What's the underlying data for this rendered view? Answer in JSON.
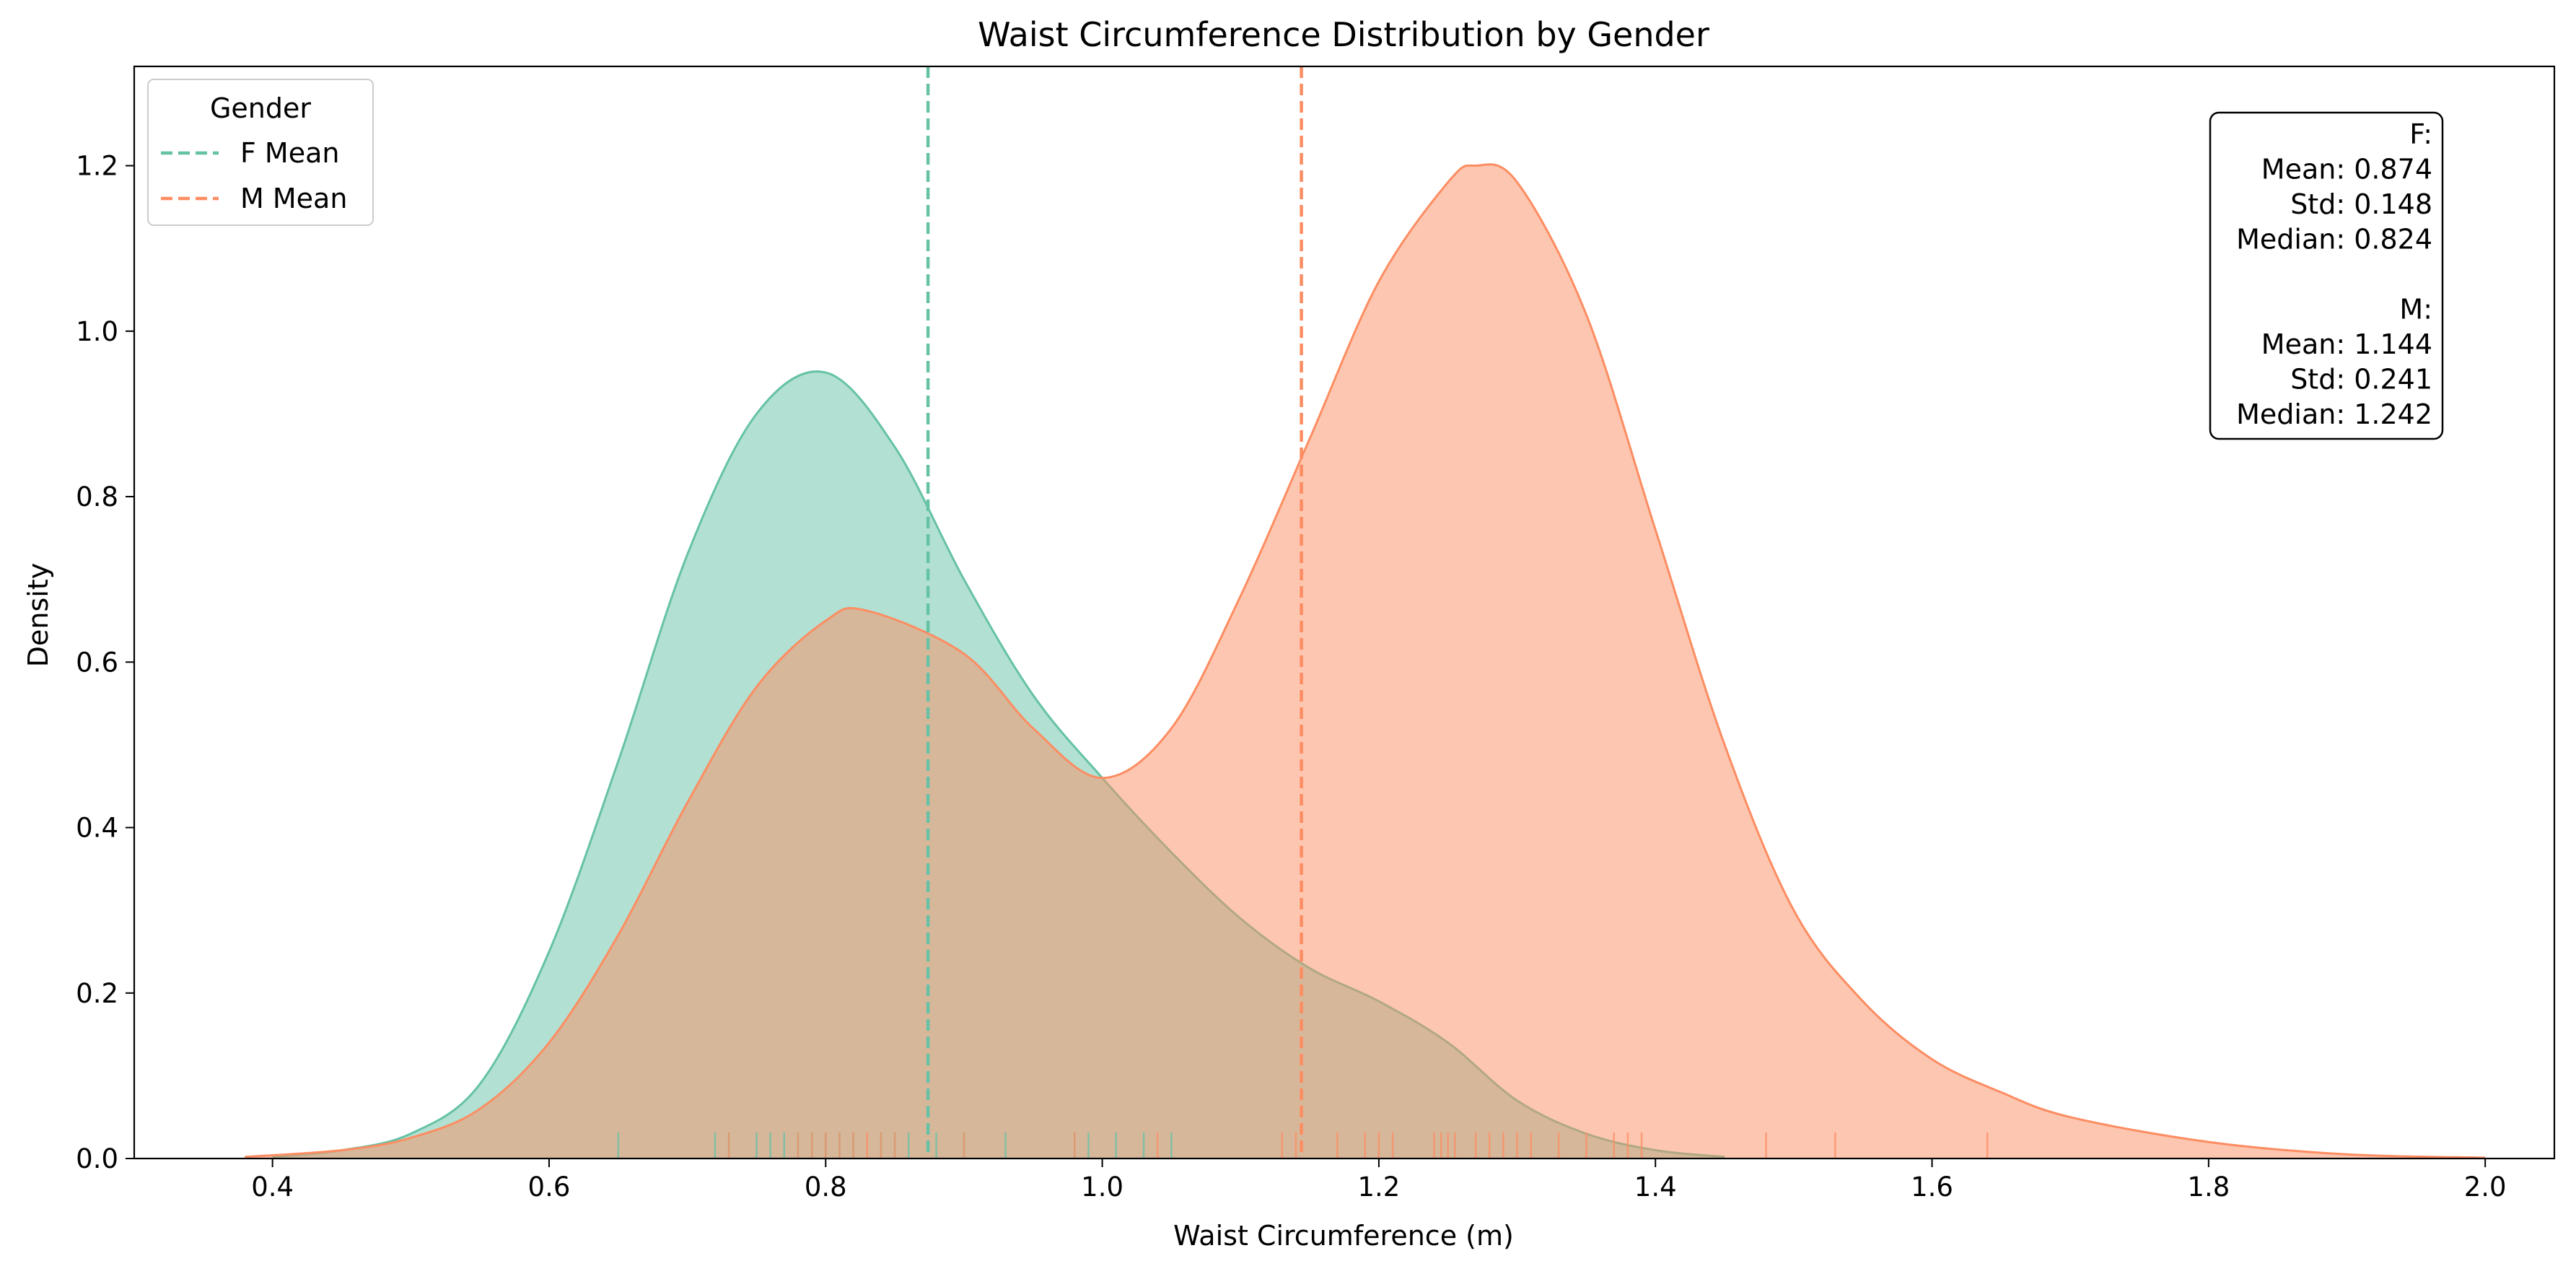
{
  "chart_data": {
    "type": "area",
    "title": "Waist Circumference Distribution by Gender",
    "xlabel": "Waist Circumference (m)",
    "ylabel": "Density",
    "xlim": [
      0.3,
      2.05
    ],
    "ylim": [
      0,
      1.32
    ],
    "xticks": [
      "0.4",
      "0.6",
      "0.8",
      "1.0",
      "1.2",
      "1.4",
      "1.6",
      "1.8",
      "2.0"
    ],
    "yticks": [
      "0.0",
      "0.2",
      "0.4",
      "0.6",
      "0.8",
      "1.0",
      "1.2"
    ],
    "grid": false,
    "legend": {
      "title": "Gender",
      "placement": "top-left",
      "entries": [
        "F Mean",
        "M Mean"
      ]
    },
    "colors": {
      "F": "#66c2a5",
      "M": "#fc8d62"
    },
    "series": [
      {
        "name": "F",
        "x": [
          0.4,
          0.45,
          0.5,
          0.55,
          0.6,
          0.65,
          0.7,
          0.75,
          0.8,
          0.85,
          0.9,
          0.95,
          1.0,
          1.05,
          1.1,
          1.15,
          1.2,
          1.25,
          1.3,
          1.35,
          1.4,
          1.45
        ],
        "y": [
          0.002,
          0.01,
          0.03,
          0.09,
          0.25,
          0.48,
          0.73,
          0.9,
          0.95,
          0.86,
          0.7,
          0.56,
          0.46,
          0.37,
          0.29,
          0.23,
          0.19,
          0.14,
          0.07,
          0.03,
          0.01,
          0.002
        ],
        "mean_line": 0.874
      },
      {
        "name": "M",
        "x": [
          0.38,
          0.45,
          0.5,
          0.55,
          0.6,
          0.65,
          0.7,
          0.75,
          0.8,
          0.83,
          0.9,
          0.95,
          1.0,
          1.05,
          1.1,
          1.15,
          1.2,
          1.25,
          1.27,
          1.3,
          1.35,
          1.4,
          1.45,
          1.5,
          1.55,
          1.6,
          1.65,
          1.7,
          1.8,
          1.9,
          2.0
        ],
        "y": [
          0.002,
          0.01,
          0.025,
          0.06,
          0.14,
          0.27,
          0.43,
          0.57,
          0.65,
          0.662,
          0.61,
          0.52,
          0.46,
          0.52,
          0.68,
          0.87,
          1.06,
          1.18,
          1.2,
          1.18,
          1.02,
          0.76,
          0.5,
          0.3,
          0.19,
          0.12,
          0.08,
          0.05,
          0.02,
          0.005,
          0.001
        ],
        "mean_line": 1.144
      }
    ],
    "rug": {
      "F": [
        0.65,
        0.72,
        0.73,
        0.75,
        0.76,
        0.77,
        0.78,
        0.79,
        0.8,
        0.81,
        0.82,
        0.84,
        0.85,
        0.86,
        0.88,
        0.9,
        0.93,
        0.98,
        0.99,
        1.01,
        1.03,
        1.05
      ],
      "M": [
        0.73,
        0.78,
        0.79,
        0.8,
        0.81,
        0.82,
        0.83,
        0.84,
        0.85,
        0.9,
        0.98,
        1.04,
        1.13,
        1.14,
        1.17,
        1.19,
        1.2,
        1.21,
        1.24,
        1.245,
        1.25,
        1.255,
        1.27,
        1.28,
        1.29,
        1.3,
        1.31,
        1.33,
        1.35,
        1.37,
        1.38,
        1.39,
        1.48,
        1.53,
        1.64
      ]
    },
    "stats_box": {
      "placement": "top-right",
      "lines": [
        "F:",
        "Mean: 0.874",
        "Std: 0.148",
        "Median: 0.824",
        "",
        "M:",
        "Mean: 1.144",
        "Std: 0.241",
        "Median: 1.242"
      ]
    }
  }
}
